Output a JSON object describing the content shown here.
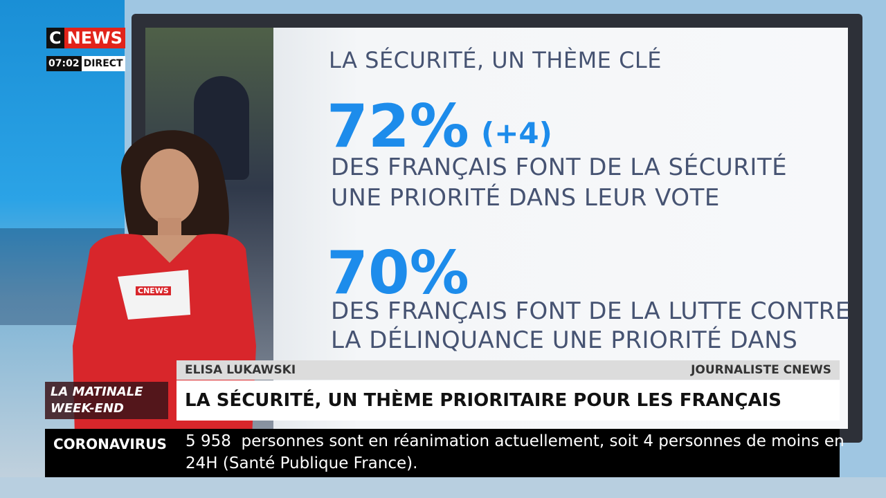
{
  "logo": {
    "c": "C",
    "news": "NEWS"
  },
  "clock": {
    "time": "07:02",
    "live": "DIRECT"
  },
  "screen": {
    "title": "LA SÉCURITÉ, UN THÈME CLÉ",
    "stat1": {
      "value": "72%",
      "change": "(+4)",
      "lines": [
        "DES FRANÇAIS FONT DE LA SÉCURITÉ",
        "UNE PRIORITÉ DANS LEUR VOTE"
      ]
    },
    "stat2": {
      "value": "70%",
      "lines": [
        "DES FRANÇAIS FONT DE LA LUTTE CONTRE",
        "LA DÉLINQUANCE UNE PRIORITÉ DANS"
      ]
    }
  },
  "paper": "CNEWS",
  "lower_third": {
    "name": "ELISA LUKAWSKI",
    "role": "JOURNALISTE CNEWS",
    "headline": "LA SÉCURITÉ, UN THÈME PRIORITAIRE POUR LES FRANÇAIS"
  },
  "show": [
    "LA MATINALE",
    "WEEK-END"
  ],
  "ticker": {
    "label": "CORONAVIRUS",
    "lines": [
      "5 958  personnes sont en réanimation actuellement, soit 4 personnes de moins en",
      "24H (Santé Publique France)."
    ]
  }
}
